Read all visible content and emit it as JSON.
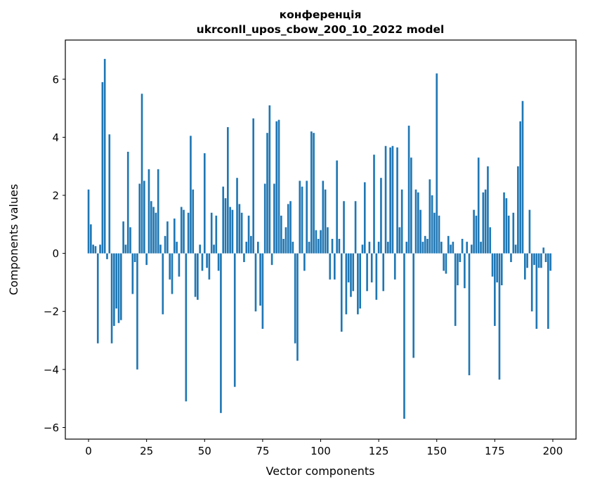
{
  "figure": {
    "background": "#ffffff",
    "spine_color": "#000000"
  },
  "chart_data": {
    "type": "bar",
    "title": "конференція",
    "subtitle": "ukrconll_upos_cbow_200_10_2022 model",
    "xlabel": "Vector components",
    "ylabel": "Components values",
    "bar_color": "#1f77b4",
    "grid": false,
    "legend": "none",
    "x_start": 0,
    "xlim": [
      -10,
      210
    ],
    "ylim": [
      -6.4,
      7.35
    ],
    "xticks": [
      0,
      25,
      50,
      75,
      100,
      125,
      150,
      175,
      200
    ],
    "xtick_labels": [
      "0",
      "25",
      "50",
      "75",
      "100",
      "125",
      "150",
      "175",
      "200"
    ],
    "yticks": [
      -6,
      -4,
      -2,
      0,
      2,
      4,
      6
    ],
    "ytick_labels": [
      "−6",
      "−4",
      "−2",
      "0",
      "2",
      "4",
      "6"
    ],
    "values": [
      2.2,
      1.0,
      0.3,
      0.25,
      -3.1,
      0.3,
      5.9,
      6.7,
      -0.2,
      4.1,
      -3.1,
      -2.5,
      -1.9,
      -2.4,
      -2.3,
      1.1,
      0.3,
      3.5,
      0.9,
      -1.4,
      -0.3,
      -4.0,
      2.4,
      5.5,
      2.5,
      -0.4,
      2.9,
      1.8,
      1.6,
      1.4,
      2.9,
      0.3,
      -2.1,
      0.6,
      1.1,
      -0.9,
      -1.4,
      1.2,
      0.4,
      -0.8,
      1.6,
      1.5,
      -5.1,
      1.4,
      4.05,
      2.2,
      -1.5,
      -1.6,
      0.3,
      -0.6,
      3.45,
      -0.5,
      -0.9,
      1.4,
      0.3,
      1.3,
      -0.6,
      -5.5,
      2.3,
      1.9,
      4.35,
      1.6,
      1.5,
      -4.6,
      2.6,
      1.7,
      1.4,
      -0.3,
      0.4,
      1.3,
      0.6,
      4.65,
      -2.0,
      0.4,
      -1.8,
      -2.6,
      2.4,
      4.15,
      5.1,
      -0.4,
      2.4,
      4.55,
      4.6,
      1.3,
      0.5,
      0.9,
      1.7,
      1.8,
      0.4,
      -3.1,
      -3.7,
      2.5,
      2.3,
      -0.6,
      2.5,
      0.4,
      4.2,
      4.15,
      0.8,
      0.5,
      0.8,
      2.5,
      2.2,
      0.9,
      -0.9,
      0.5,
      -0.9,
      3.2,
      0.5,
      -2.7,
      1.8,
      -2.1,
      -1.0,
      -1.5,
      -1.3,
      1.8,
      -2.1,
      -1.9,
      0.3,
      2.45,
      -1.3,
      0.4,
      -1.0,
      3.4,
      -1.6,
      0.4,
      2.6,
      -1.3,
      3.7,
      0.4,
      3.65,
      3.7,
      -0.9,
      3.65,
      0.9,
      2.2,
      -5.7,
      0.4,
      4.4,
      3.3,
      -3.6,
      2.2,
      2.1,
      1.5,
      0.4,
      0.6,
      0.5,
      2.55,
      2.0,
      1.4,
      6.2,
      1.3,
      0.4,
      -0.6,
      -0.7,
      0.6,
      0.3,
      0.4,
      -2.5,
      -1.1,
      -0.3,
      0.5,
      -1.2,
      0.4,
      -4.2,
      0.3,
      1.5,
      1.3,
      3.3,
      0.4,
      2.1,
      2.2,
      3.0,
      0.9,
      -0.8,
      -2.5,
      -1.0,
      -4.35,
      -1.1,
      2.1,
      1.9,
      1.3,
      -0.3,
      1.4,
      0.3,
      3.0,
      4.55,
      5.25,
      -0.9,
      -0.5,
      1.5,
      -2.0,
      -0.4,
      -2.6,
      -0.5,
      -0.5,
      0.2,
      -0.3,
      -2.6,
      -0.6
    ]
  }
}
